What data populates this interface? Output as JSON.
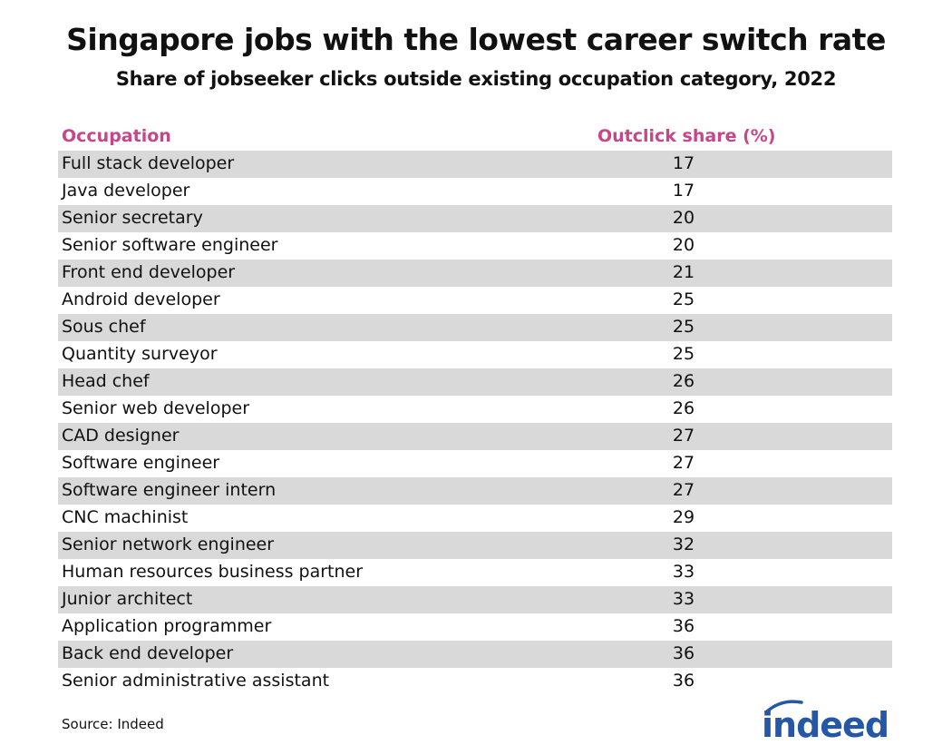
{
  "chart_data": {
    "type": "table",
    "title": "Singapore jobs with the lowest career switch rate",
    "subtitle": "Share of jobseeker clicks outside existing occupation category, 2022",
    "columns": [
      "Occupation",
      "Outclick share (%)"
    ],
    "rows": [
      {
        "occupation": "Full stack developer",
        "value": 17
      },
      {
        "occupation": "Java developer",
        "value": 17
      },
      {
        "occupation": "Senior secretary",
        "value": 20
      },
      {
        "occupation": "Senior software engineer",
        "value": 20
      },
      {
        "occupation": "Front end developer",
        "value": 21
      },
      {
        "occupation": "Android developer",
        "value": 25
      },
      {
        "occupation": "Sous chef",
        "value": 25
      },
      {
        "occupation": "Quantity surveyor",
        "value": 25
      },
      {
        "occupation": "Head chef",
        "value": 26
      },
      {
        "occupation": "Senior web developer",
        "value": 26
      },
      {
        "occupation": "CAD designer",
        "value": 27
      },
      {
        "occupation": "Software engineer",
        "value": 27
      },
      {
        "occupation": "Software engineer intern",
        "value": 27
      },
      {
        "occupation": "CNC machinist",
        "value": 29
      },
      {
        "occupation": "Senior network engineer",
        "value": 32
      },
      {
        "occupation": "Human resources business partner",
        "value": 33
      },
      {
        "occupation": "Junior architect",
        "value": 33
      },
      {
        "occupation": "Application programmer",
        "value": 36
      },
      {
        "occupation": "Back end developer",
        "value": 36
      },
      {
        "occupation": "Senior administrative assistant",
        "value": 36
      }
    ],
    "source": "Source: Indeed"
  },
  "colors": {
    "header_text": "#c8458a",
    "row_shade": "#d9d9d9",
    "brand": "#2557a7"
  },
  "logo": {
    "text": "indeed",
    "icon": "indeed-logo"
  }
}
